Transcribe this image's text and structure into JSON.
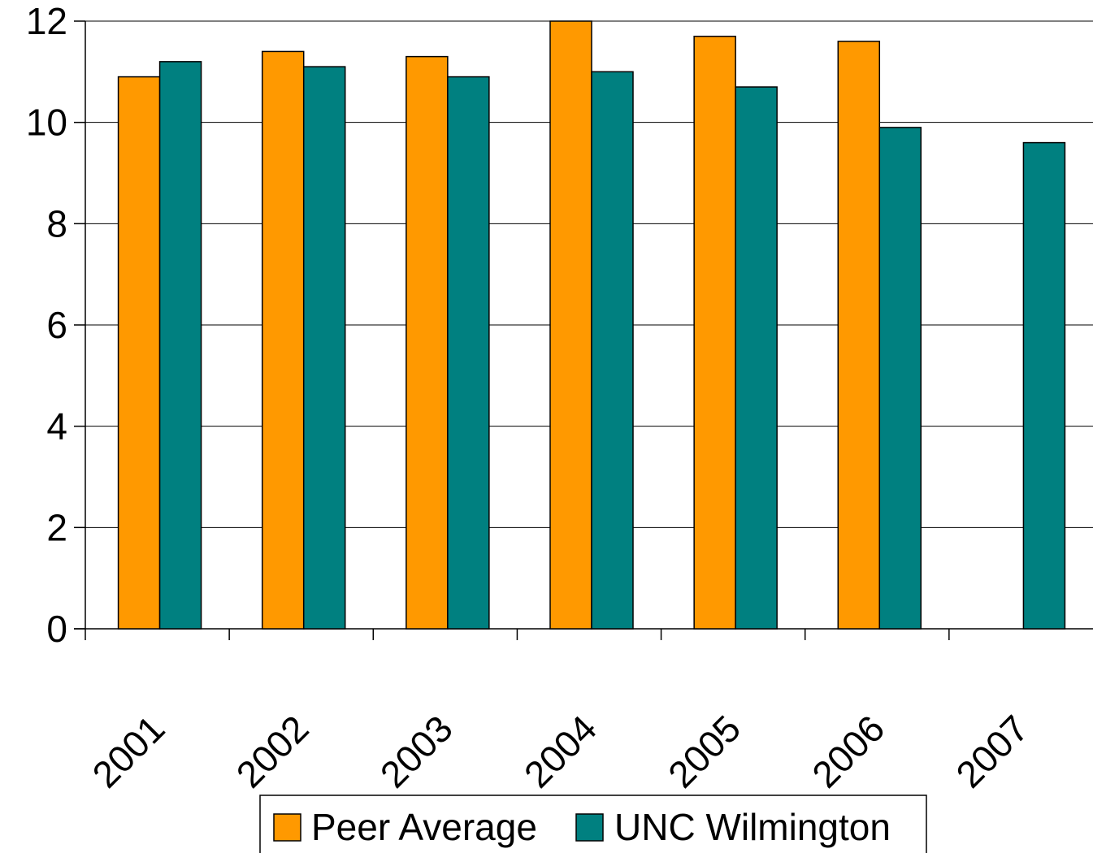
{
  "chart_data": {
    "type": "bar",
    "categories": [
      "2001",
      "2002",
      "2003",
      "2004",
      "2005",
      "2006",
      "2007"
    ],
    "series": [
      {
        "name": "Peer Average",
        "values": [
          10.9,
          11.4,
          11.3,
          12.0,
          11.7,
          11.6,
          null
        ],
        "color": "#FF9900"
      },
      {
        "name": "UNC Wilmington",
        "values": [
          11.2,
          11.1,
          10.9,
          11.0,
          10.7,
          9.9,
          9.6
        ],
        "color": "#008080"
      }
    ],
    "y_ticks": [
      "0",
      "2",
      "4",
      "6",
      "8",
      "10",
      "12"
    ],
    "ylim": [
      0,
      12
    ],
    "title": "",
    "xlabel": "",
    "ylabel": "",
    "grid": true,
    "legend_position": "bottom"
  }
}
